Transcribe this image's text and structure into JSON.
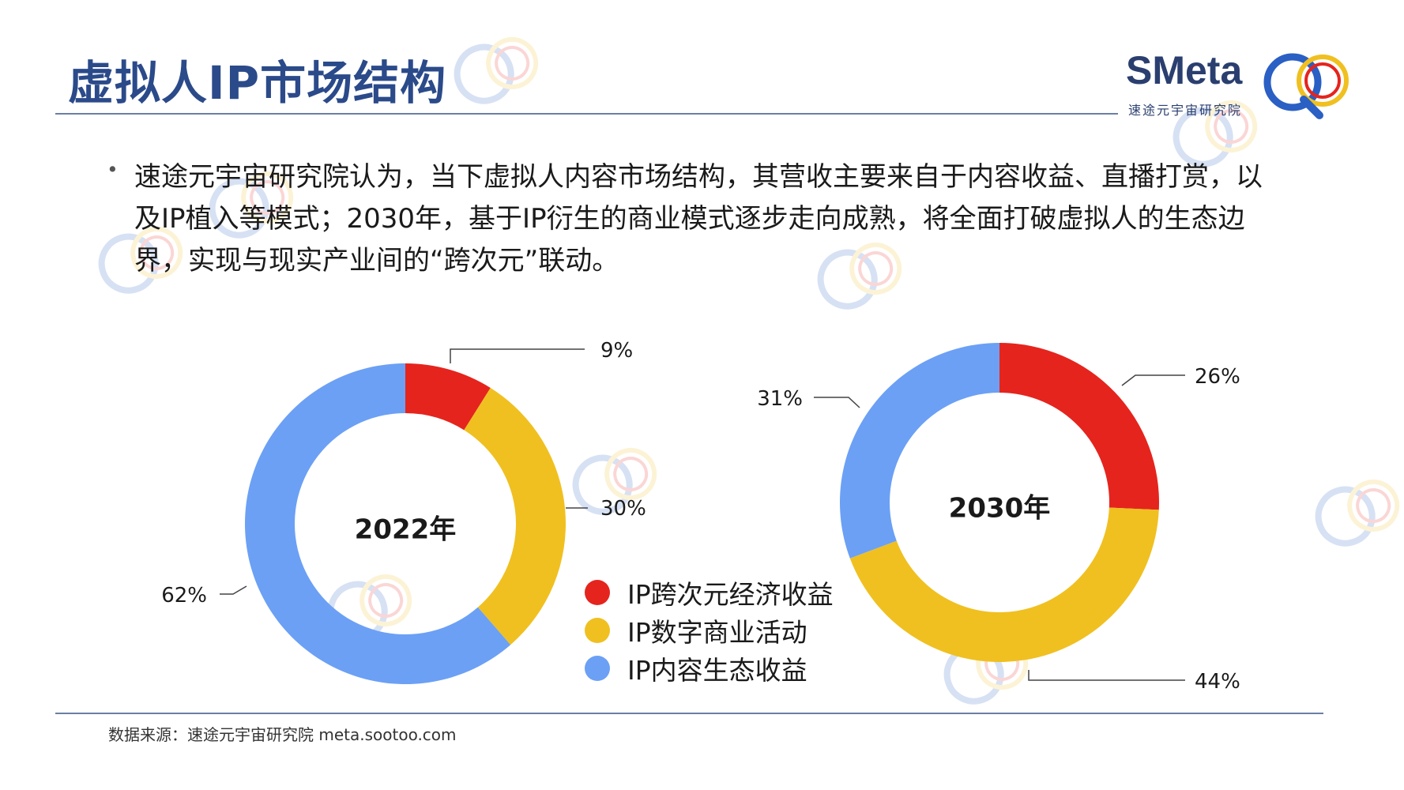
{
  "title": "虚拟人IP市场结构",
  "logo": {
    "text": "SMeta",
    "subtitle": "速途元宇宙研究院"
  },
  "bullet_symbol": "•",
  "paragraph": "速途元宇宙研究院认为，当下虚拟人内容市场结构，其营收主要来自于内容收益、直播打赏，以及IP植入等模式；2030年，基于IP衍生的商业模式逐步走向成熟，将全面打破虚拟人的生态边界，实现与现实产业间的“跨次元”联动。",
  "colors": {
    "red": "#e5241d",
    "yellow": "#f0c020",
    "blue": "#6ba0f5",
    "title": "#2b4a8a",
    "rule": "#6b7fa6"
  },
  "legend": [
    {
      "label": "IP跨次元经济收益",
      "color": "#e5241d"
    },
    {
      "label": "IP数字商业活动",
      "color": "#f0c020"
    },
    {
      "label": "IP内容生态收益",
      "color": "#6ba0f5"
    }
  ],
  "chart_data": [
    {
      "type": "pie",
      "donut": true,
      "title": "2022年",
      "categories": [
        "IP跨次元经济收益",
        "IP数字商业活动",
        "IP内容生态收益"
      ],
      "values": [
        9,
        30,
        62
      ],
      "labels": [
        "9%",
        "30%",
        "62%"
      ],
      "colors": [
        "#e5241d",
        "#f0c020",
        "#6ba0f5"
      ]
    },
    {
      "type": "pie",
      "donut": true,
      "title": "2030年",
      "categories": [
        "IP跨次元经济收益",
        "IP数字商业活动",
        "IP内容生态收益"
      ],
      "values": [
        26,
        44,
        31
      ],
      "labels": [
        "26%",
        "44%",
        "31%"
      ],
      "colors": [
        "#e5241d",
        "#f0c020",
        "#6ba0f5"
      ]
    }
  ],
  "source": "数据来源：速途元宇宙研究院 meta.sootoo.com"
}
